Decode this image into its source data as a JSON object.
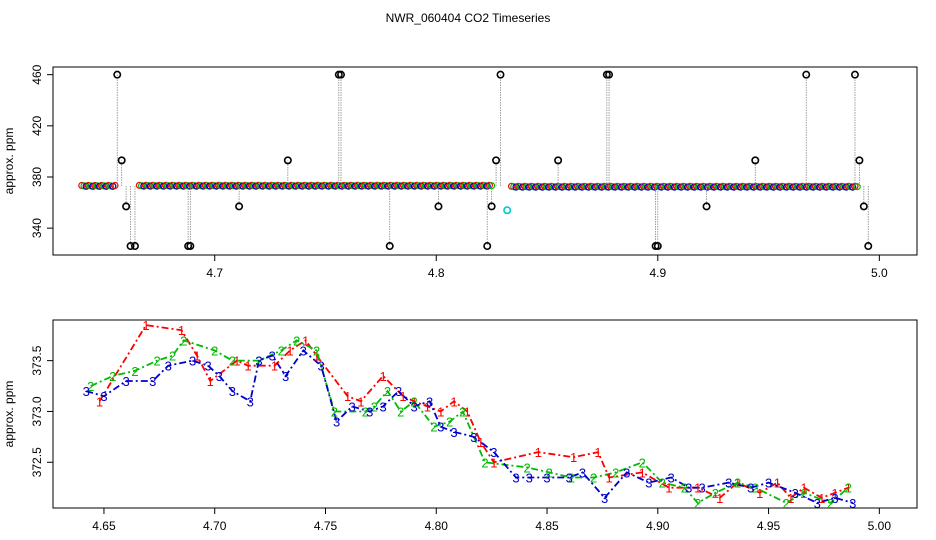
{
  "title": "NWR_060404  CO2 Timeseries",
  "colors": {
    "run1": "#ff0000",
    "run2": "#00bb00",
    "run3": "#0000cc",
    "ref": "#00cccc",
    "line": "#888888",
    "axis": "#000000"
  },
  "chart_data": [
    {
      "type": "scatter",
      "ylabel": "approx. ppm",
      "xlim": [
        4.627,
        5.017
      ],
      "ylim": [
        319,
        466
      ],
      "xticks": [
        {
          "value": 4.7,
          "label": "4.7"
        },
        {
          "value": 4.8,
          "label": "4.8"
        },
        {
          "value": 4.9,
          "label": "4.9"
        },
        {
          "value": 5.0,
          "label": "5.0"
        }
      ],
      "yticks": [
        {
          "value": 340,
          "label": "340"
        },
        {
          "value": 380,
          "label": "380"
        },
        {
          "value": 420,
          "label": "420"
        },
        {
          "value": 460,
          "label": "460"
        }
      ],
      "segments": [
        {
          "x0": 4.64,
          "x1": 4.655,
          "y": 373.0
        },
        {
          "x0": 4.666,
          "x1": 4.825,
          "y": 373.2
        },
        {
          "x0": 4.834,
          "x1": 4.99,
          "y": 372.4
        }
      ],
      "series": [
        {
          "x": [
            4.656,
            4.658,
            4.66,
            4.662,
            4.664
          ],
          "y": [
            460,
            393,
            357,
            326,
            326
          ]
        },
        {
          "x": [
            4.688,
            4.689
          ],
          "y": [
            326,
            326
          ]
        },
        {
          "x": [
            4.711
          ],
          "y": [
            357
          ]
        },
        {
          "x": [
            4.733
          ],
          "y": [
            393
          ]
        },
        {
          "x": [
            4.756,
            4.757
          ],
          "y": [
            460,
            460
          ]
        },
        {
          "x": [
            4.779
          ],
          "y": [
            326
          ]
        },
        {
          "x": [
            4.801
          ],
          "y": [
            357
          ]
        },
        {
          "x": [
            4.823,
            4.825,
            4.827,
            4.829
          ],
          "y": [
            326,
            357,
            393,
            460
          ]
        },
        {
          "x": [
            4.855
          ],
          "y": [
            393
          ]
        },
        {
          "x": [
            4.877,
            4.878
          ],
          "y": [
            460,
            460
          ]
        },
        {
          "x": [
            4.899,
            4.9
          ],
          "y": [
            326,
            326
          ]
        },
        {
          "x": [
            4.922
          ],
          "y": [
            357
          ]
        },
        {
          "x": [
            4.944
          ],
          "y": [
            393
          ]
        },
        {
          "x": [
            4.967
          ],
          "y": [
            460
          ]
        },
        {
          "x": [
            4.989,
            4.991,
            4.993,
            4.995
          ],
          "y": [
            460,
            393,
            357,
            326
          ]
        }
      ],
      "reference": {
        "x": 4.832,
        "y": 354
      }
    },
    {
      "type": "line",
      "ylabel": "approx. ppm",
      "xlim": [
        4.627,
        5.017
      ],
      "ylim": [
        372.05,
        373.9
      ],
      "xticks": [
        {
          "value": 4.65,
          "label": "4.65"
        },
        {
          "value": 4.7,
          "label": "4.70"
        },
        {
          "value": 4.75,
          "label": "4.75"
        },
        {
          "value": 4.8,
          "label": "4.80"
        },
        {
          "value": 4.85,
          "label": "4.85"
        },
        {
          "value": 4.9,
          "label": "4.90"
        },
        {
          "value": 4.95,
          "label": "4.95"
        },
        {
          "value": 5.0,
          "label": "5.00"
        }
      ],
      "yticks": [
        {
          "value": 372.5,
          "label": "372.5"
        },
        {
          "value": 373.0,
          "label": "373.0"
        },
        {
          "value": 373.5,
          "label": "373.5"
        }
      ],
      "series": [
        {
          "name": "1",
          "x": [
            4.648,
            4.669,
            4.685,
            4.692,
            4.698,
            4.71,
            4.715,
            4.727,
            4.734,
            4.741,
            4.746,
            4.76,
            4.766,
            4.776,
            4.785,
            4.79,
            4.796,
            4.802,
            4.808,
            4.814,
            4.82,
            4.826,
            4.846,
            4.862,
            4.873,
            4.878,
            4.893,
            4.905,
            4.918,
            4.928,
            4.936,
            4.946,
            4.954,
            4.96,
            4.966,
            4.974,
            4.98,
            4.986
          ],
          "y": [
            373.1,
            373.85,
            373.8,
            373.55,
            373.3,
            373.5,
            373.45,
            373.45,
            373.6,
            373.7,
            373.55,
            373.15,
            373.1,
            373.35,
            373.15,
            373.1,
            373.05,
            373.0,
            373.1,
            373.0,
            372.7,
            372.5,
            372.6,
            372.55,
            372.6,
            372.35,
            372.4,
            372.25,
            372.25,
            372.15,
            372.3,
            372.2,
            372.3,
            372.15,
            372.25,
            372.15,
            372.2,
            372.25
          ]
        },
        {
          "name": "2",
          "x": [
            4.644,
            4.654,
            4.664,
            4.674,
            4.681,
            4.686,
            4.7,
            4.708,
            4.72,
            4.73,
            4.737,
            4.746,
            4.754,
            4.768,
            4.772,
            4.778,
            4.784,
            4.79,
            4.799,
            4.806,
            4.812,
            4.822,
            4.841,
            4.851,
            4.861,
            4.871,
            4.881,
            4.893,
            4.902,
            4.912,
            4.918,
            4.926,
            4.936,
            4.944,
            4.958,
            4.966,
            4.978,
            4.986
          ],
          "y": [
            373.25,
            373.35,
            373.4,
            373.5,
            373.55,
            373.7,
            373.6,
            373.5,
            373.5,
            373.6,
            373.7,
            373.6,
            373.0,
            373.0,
            373.05,
            373.2,
            373.0,
            373.1,
            372.85,
            372.9,
            373.0,
            372.5,
            372.45,
            372.4,
            372.35,
            372.35,
            372.4,
            372.5,
            372.3,
            372.25,
            372.1,
            372.2,
            372.3,
            372.25,
            372.1,
            372.2,
            372.1,
            372.25
          ]
        },
        {
          "name": "3",
          "x": [
            4.642,
            4.65,
            4.66,
            4.672,
            4.679,
            4.69,
            4.697,
            4.702,
            4.708,
            4.716,
            4.72,
            4.726,
            4.732,
            4.74,
            4.748,
            4.755,
            4.762,
            4.77,
            4.776,
            4.783,
            4.79,
            4.797,
            4.802,
            4.808,
            4.817,
            4.826,
            4.836,
            4.842,
            4.85,
            4.86,
            4.866,
            4.876,
            4.886,
            4.896,
            4.906,
            4.914,
            4.92,
            4.932,
            4.942,
            4.95,
            4.962,
            4.972,
            4.98,
            4.988
          ],
          "y": [
            373.2,
            373.15,
            373.3,
            373.3,
            373.45,
            373.5,
            373.45,
            373.35,
            373.2,
            373.1,
            373.5,
            373.55,
            373.35,
            373.6,
            373.45,
            372.9,
            373.05,
            373.0,
            373.05,
            373.2,
            373.05,
            373.1,
            372.85,
            372.8,
            372.75,
            372.6,
            372.35,
            372.35,
            372.35,
            372.35,
            372.4,
            372.15,
            372.4,
            372.3,
            372.35,
            372.25,
            372.25,
            372.3,
            372.25,
            372.3,
            372.2,
            372.1,
            372.15,
            372.1
          ]
        }
      ]
    }
  ]
}
